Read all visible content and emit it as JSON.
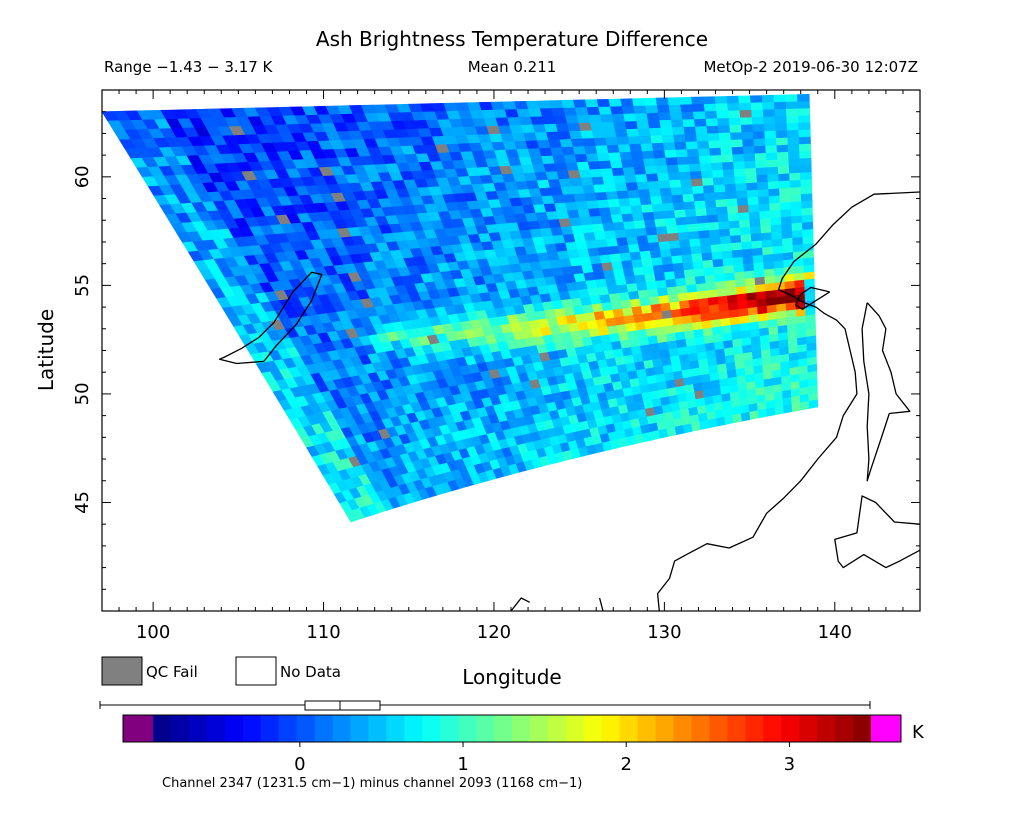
{
  "chart_data": {
    "type": "heatmap",
    "title": "Ash Brightness Temperature Difference",
    "header": {
      "range": "Range −1.43 − 3.17 K",
      "mean": "Mean 0.211",
      "source": "MetOp-2 2019-06-30 12:07Z"
    },
    "xlabel": "Longitude",
    "ylabel": "Latitude",
    "xlim": [
      97,
      145
    ],
    "ylim": [
      40,
      64
    ],
    "x_ticks": [
      100,
      110,
      120,
      130,
      140
    ],
    "y_ticks": [
      45,
      50,
      55,
      60
    ],
    "swath": {
      "corners": {
        "top_left": [
          97,
          63
        ],
        "top_right": [
          138.5,
          63.8
        ],
        "bottom_right": [
          139,
          49.4
        ],
        "bottom_left": [
          111.6,
          44.1
        ]
      },
      "value_range": [
        -1.43,
        3.17
      ],
      "mean": 0.211,
      "ash_plume": {
        "points": [
          [
            113,
            52.6
          ],
          [
            123,
            53.1
          ],
          [
            130,
            53.6
          ],
          [
            134,
            54.1
          ],
          [
            138.5,
            54.6
          ]
        ],
        "peak_value": 3.0
      },
      "qc_fail_color": "#808080"
    },
    "legend": [
      {
        "label": "QC Fail",
        "color": "#808080"
      },
      {
        "label": "No Data",
        "color": "#ffffff"
      }
    ],
    "colorbar": {
      "unit": "K",
      "range": [
        -0.9,
        3.5
      ],
      "ticks": [
        0,
        1,
        2,
        3
      ],
      "underflow_color": "#800080",
      "overflow_color": "#ff00ff",
      "box_range": [
        -0.05,
        0.38
      ],
      "box_median": 0.16,
      "whisker_range": [
        -1.19,
        3.17
      ],
      "caption": "Channel 2347 (1231.5 cm−1) minus channel 2093 (1168 cm−1)"
    }
  }
}
